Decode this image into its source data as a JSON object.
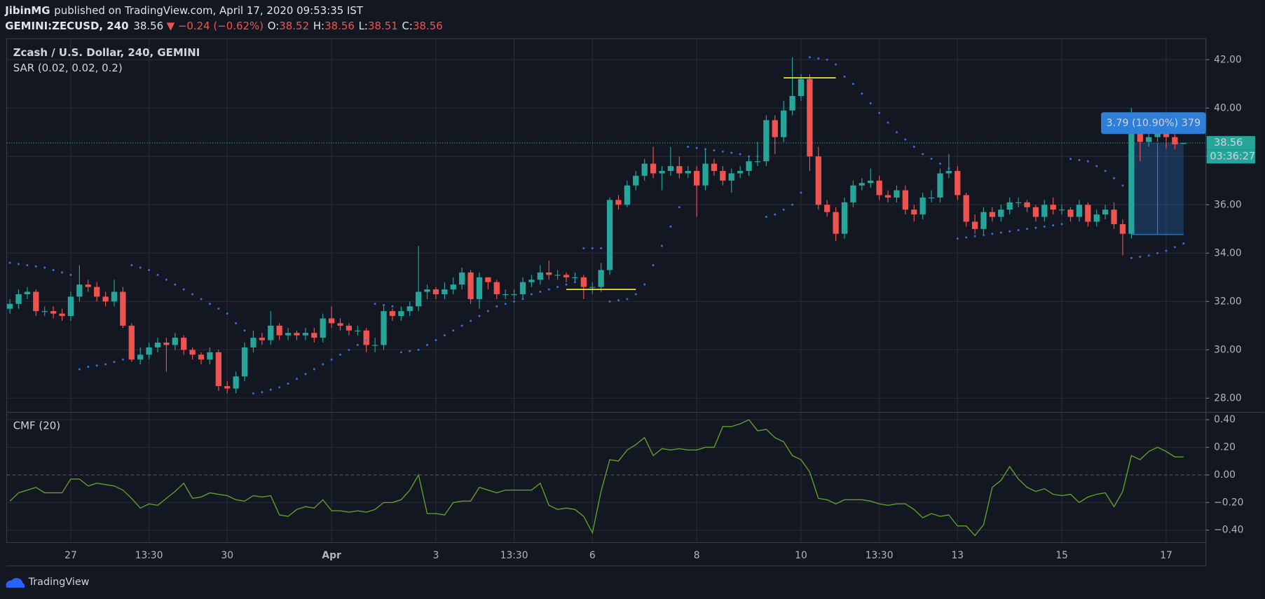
{
  "header": {
    "author": "JibinMG",
    "published": "published on TradingView.com, April 17, 2020 09:53:35 IST",
    "symbol": "GEMINI:ZECUSD, 240",
    "last": "38.56",
    "arrow": "▼",
    "change": "−0.24 (−0.62%)",
    "ohlc": [
      {
        "label": "O:",
        "value": "38.52"
      },
      {
        "label": "H:",
        "value": "38.56"
      },
      {
        "label": "L:",
        "value": "38.51"
      },
      {
        "label": "C:",
        "value": "38.56"
      }
    ]
  },
  "footer": {
    "brand": "TradingView"
  },
  "chart_data": [
    {
      "type": "candlestick",
      "title": "Zcash / U.S. Dollar, 240, GEMINI",
      "up_color": "#26a69a",
      "down_color": "#ef5350",
      "grid": true,
      "xlim": [
        -0.37,
        137.57
      ],
      "ylim": [
        27.43,
        42.87
      ],
      "xticks": [
        {
          "value": 7,
          "label": "27"
        },
        {
          "value": 16,
          "label": "13:30"
        },
        {
          "value": 25,
          "label": "30"
        },
        {
          "value": 37,
          "label": "Apr"
        },
        {
          "value": 49,
          "label": "3"
        },
        {
          "value": 58,
          "label": "13:30"
        },
        {
          "value": 67,
          "label": "6"
        },
        {
          "value": 79,
          "label": "8"
        },
        {
          "value": 91,
          "label": "10"
        },
        {
          "value": 100,
          "label": "13:30"
        },
        {
          "value": 109,
          "label": "13"
        },
        {
          "value": 121,
          "label": "15"
        },
        {
          "value": 133,
          "label": "17"
        }
      ],
      "yticks": [
        {
          "value": 42,
          "label": "42.00"
        },
        {
          "value": 40,
          "label": "40.00"
        },
        {
          "value": 38,
          "label": "38.00"
        },
        {
          "value": 36,
          "label": "36.00"
        },
        {
          "value": 34,
          "label": "34.00"
        },
        {
          "value": 32,
          "label": "32.00"
        },
        {
          "value": 30,
          "label": "30.00"
        },
        {
          "value": 28,
          "label": "28.00"
        }
      ],
      "open": [
        31.7,
        31.9,
        32.3,
        32.4,
        31.6,
        31.6,
        31.5,
        31.4,
        32.2,
        32.7,
        32.6,
        32.2,
        32.0,
        32.4,
        31.0,
        29.6,
        29.8,
        30.1,
        30.3,
        30.2,
        30.5,
        30.0,
        29.8,
        29.6,
        29.9,
        28.5,
        28.4,
        28.9,
        30.1,
        30.5,
        30.4,
        31.0,
        30.6,
        30.7,
        30.6,
        30.7,
        30.5,
        31.3,
        31.1,
        31.0,
        30.8,
        30.8,
        30.2,
        30.2,
        31.6,
        31.4,
        31.6,
        31.8,
        32.4,
        32.5,
        32.3,
        32.5,
        32.7,
        33.2,
        32.1,
        33.0,
        32.8,
        32.3,
        32.3,
        32.3,
        32.8,
        32.9,
        33.2,
        33.1,
        33.1,
        33.0,
        33.0,
        32.6,
        32.6,
        33.3,
        36.2,
        36.0,
        36.8,
        37.2,
        37.7,
        37.3,
        37.4,
        37.6,
        37.3,
        37.4,
        36.8,
        37.7,
        37.4,
        37.0,
        37.3,
        37.4,
        37.8,
        37.8,
        39.5,
        38.8,
        39.9,
        40.5,
        41.2,
        38.0,
        36.0,
        35.7,
        34.8,
        36.1,
        36.8,
        36.9,
        37.0,
        36.4,
        36.3,
        36.6,
        35.8,
        35.6,
        36.3,
        36.3,
        37.3,
        37.4,
        36.4,
        35.3,
        35.0,
        35.7,
        35.5,
        35.8,
        36.1,
        36.1,
        35.9,
        35.5,
        36.0,
        35.8,
        35.8,
        35.5,
        36.0,
        35.3,
        35.6,
        35.8,
        35.2,
        34.8,
        39.2,
        38.6,
        38.8,
        39.0,
        38.8,
        38.52
      ],
      "high": [
        32.1,
        32.5,
        32.6,
        32.5,
        31.8,
        31.8,
        31.7,
        32.4,
        33.5,
        32.9,
        32.8,
        32.4,
        32.9,
        32.6,
        31.1,
        30.1,
        30.3,
        30.5,
        30.5,
        30.7,
        30.6,
        30.1,
        29.9,
        30.1,
        30.0,
        28.7,
        29.1,
        30.3,
        30.8,
        30.7,
        31.6,
        31.1,
        30.9,
        30.8,
        30.9,
        30.9,
        31.5,
        31.8,
        31.3,
        31.1,
        31.0,
        30.9,
        30.5,
        31.8,
        31.7,
        31.8,
        32.0,
        34.3,
        32.7,
        32.6,
        32.8,
        33.0,
        33.4,
        33.3,
        33.2,
        33.0,
        32.9,
        32.5,
        32.5,
        33.0,
        33.1,
        33.5,
        33.7,
        33.3,
        33.2,
        33.2,
        33.1,
        32.8,
        33.6,
        36.3,
        36.4,
        37.0,
        37.4,
        37.9,
        38.4,
        37.6,
        38.4,
        38.0,
        37.6,
        37.6,
        38.3,
        37.9,
        37.6,
        37.5,
        37.6,
        38.0,
        38.6,
        39.7,
        39.7,
        40.3,
        42.1,
        41.4,
        41.4,
        38.4,
        36.2,
        35.9,
        36.3,
        37.0,
        37.1,
        37.5,
        37.2,
        36.6,
        36.8,
        36.8,
        36.0,
        36.5,
        36.6,
        37.5,
        38.1,
        37.6,
        36.5,
        35.6,
        35.9,
        35.9,
        36.0,
        36.3,
        36.3,
        36.2,
        36.0,
        36.2,
        36.3,
        36.0,
        35.9,
        36.2,
        36.1,
        35.8,
        36.0,
        36.1,
        35.4,
        40.0,
        39.4,
        39.2,
        39.4,
        39.2,
        39.0,
        38.56
      ],
      "low": [
        31.5,
        31.7,
        32.1,
        31.4,
        31.4,
        31.3,
        31.2,
        31.2,
        32.0,
        32.4,
        32.0,
        31.8,
        31.8,
        30.9,
        29.5,
        29.4,
        29.6,
        29.9,
        29.1,
        30.0,
        29.8,
        29.6,
        29.4,
        29.4,
        28.3,
        28.2,
        28.2,
        28.7,
        29.9,
        30.2,
        30.2,
        30.4,
        30.4,
        30.4,
        30.4,
        30.3,
        30.3,
        30.9,
        30.8,
        30.6,
        30.6,
        29.9,
        29.9,
        30.0,
        31.2,
        31.2,
        31.4,
        31.6,
        32.1,
        32.1,
        32.1,
        32.3,
        32.5,
        31.9,
        31.7,
        32.5,
        32.1,
        32.1,
        32.1,
        32.1,
        32.6,
        32.7,
        32.9,
        32.9,
        32.8,
        32.8,
        32.1,
        32.3,
        32.4,
        33.1,
        35.8,
        35.9,
        36.6,
        37.0,
        37.1,
        36.6,
        37.2,
        37.1,
        37.1,
        35.5,
        36.6,
        37.2,
        36.8,
        36.5,
        37.1,
        37.2,
        37.6,
        37.6,
        38.1,
        38.6,
        39.7,
        40.3,
        37.4,
        35.8,
        35.5,
        34.5,
        34.6,
        35.9,
        36.6,
        36.7,
        36.2,
        36.1,
        36.1,
        35.6,
        35.3,
        35.4,
        36.1,
        36.1,
        37.1,
        36.2,
        35.1,
        34.8,
        34.8,
        35.3,
        35.3,
        35.6,
        35.9,
        35.7,
        35.3,
        35.3,
        35.6,
        35.6,
        35.3,
        35.3,
        35.1,
        35.1,
        35.4,
        35.0,
        33.9,
        34.6,
        37.8,
        38.4,
        38.6,
        38.3,
        38.3,
        38.51
      ],
      "close": [
        31.9,
        32.3,
        32.4,
        31.6,
        31.6,
        31.5,
        31.4,
        32.2,
        32.7,
        32.6,
        32.2,
        32.0,
        32.4,
        31.0,
        29.6,
        29.8,
        30.1,
        30.3,
        30.2,
        30.5,
        30.0,
        29.8,
        29.6,
        29.9,
        28.5,
        28.4,
        28.9,
        30.1,
        30.5,
        30.4,
        31.0,
        30.6,
        30.7,
        30.6,
        30.7,
        30.5,
        31.3,
        31.1,
        31.0,
        30.8,
        30.8,
        30.2,
        30.2,
        31.6,
        31.4,
        31.6,
        31.8,
        32.4,
        32.5,
        32.3,
        32.5,
        32.7,
        33.2,
        32.1,
        33.0,
        32.8,
        32.3,
        32.3,
        32.3,
        32.8,
        32.9,
        33.2,
        33.1,
        33.1,
        33.0,
        33.0,
        32.6,
        32.6,
        33.3,
        36.2,
        36.0,
        36.8,
        37.2,
        37.7,
        37.3,
        37.4,
        37.6,
        37.3,
        37.4,
        36.8,
        37.7,
        37.4,
        37.0,
        37.3,
        37.4,
        37.8,
        37.8,
        39.5,
        38.8,
        39.9,
        40.5,
        41.2,
        38.0,
        36.0,
        35.7,
        34.8,
        36.1,
        36.8,
        36.9,
        37.0,
        36.4,
        36.3,
        36.6,
        35.8,
        35.6,
        36.3,
        36.3,
        37.3,
        37.4,
        36.4,
        35.3,
        35.0,
        35.7,
        35.5,
        35.8,
        36.1,
        36.1,
        35.9,
        35.5,
        36.0,
        35.8,
        35.8,
        35.5,
        36.0,
        35.3,
        35.6,
        35.8,
        35.2,
        34.8,
        39.2,
        38.6,
        38.8,
        39.0,
        38.8,
        38.5,
        38.56
      ],
      "sar": {
        "name": "SAR (0.02, 0.02, 0.2)",
        "color": "#3a6fd8",
        "values": [
          33.6,
          33.55,
          33.5,
          33.45,
          33.4,
          33.3,
          33.2,
          33.1,
          29.2,
          29.3,
          29.35,
          29.4,
          29.5,
          29.6,
          33.5,
          33.4,
          33.3,
          33.1,
          32.9,
          32.7,
          32.5,
          32.3,
          32.1,
          31.9,
          31.7,
          31.5,
          31.1,
          30.8,
          28.2,
          28.25,
          28.35,
          28.45,
          28.6,
          28.8,
          29.0,
          29.2,
          29.4,
          29.6,
          29.8,
          30.0,
          30.2,
          30.4,
          31.9,
          31.85,
          31.8,
          29.9,
          29.95,
          30.0,
          30.2,
          30.4,
          30.6,
          30.8,
          31.0,
          31.2,
          31.4,
          31.6,
          31.8,
          31.9,
          32.0,
          32.1,
          32.3,
          32.4,
          32.5,
          32.6,
          32.7,
          32.8,
          34.2,
          34.2,
          34.2,
          32.0,
          32.05,
          32.1,
          32.3,
          32.7,
          33.5,
          34.3,
          35.1,
          35.9,
          38.4,
          38.35,
          38.3,
          38.25,
          38.2,
          38.15,
          38.1,
          38.0,
          38.0,
          35.5,
          35.6,
          35.8,
          36.0,
          36.5,
          42.1,
          42.05,
          42.0,
          41.8,
          41.3,
          41.0,
          40.6,
          40.2,
          39.8,
          39.4,
          39.0,
          38.7,
          38.4,
          38.1,
          37.9,
          37.7,
          37.5,
          34.6,
          34.65,
          34.7,
          34.75,
          34.8,
          34.85,
          34.9,
          34.95,
          35.0,
          35.05,
          35.1,
          35.15,
          35.2,
          37.9,
          37.85,
          37.8,
          37.6,
          37.4,
          37.1,
          36.8,
          33.8,
          33.85,
          33.9,
          34.0,
          34.1,
          34.25,
          34.4
        ]
      },
      "last_price": 38.56,
      "last_price_color": "#26a69a",
      "countdown": "03:36:27",
      "levels": [
        {
          "value": 41.25,
          "start": 89,
          "end": 95,
          "color": "#f5e51b"
        },
        {
          "value": 32.5,
          "start": 64,
          "end": 72,
          "color": "#f5e51b"
        }
      ],
      "measure": {
        "label": "3.79 (10.90%) 379",
        "from": 34.77,
        "to": 38.56,
        "start": 129,
        "end": 135,
        "color": "#2f7ed8"
      }
    },
    {
      "type": "line",
      "title": "CMF (20)",
      "ylim": [
        -0.49,
        0.45
      ],
      "yticks": [
        {
          "value": 0.4,
          "label": "0.40"
        },
        {
          "value": 0.2,
          "label": "0.20"
        },
        {
          "value": 0,
          "label": "0.00"
        },
        {
          "value": -0.2,
          "label": "−0.20"
        },
        {
          "value": -0.4,
          "label": "−0.40"
        }
      ],
      "series": [
        {
          "name": "CMF (20)",
          "color": "#5f9f2a",
          "values": [
            -0.19,
            -0.13,
            -0.11,
            -0.09,
            -0.13,
            -0.13,
            -0.13,
            -0.03,
            -0.03,
            -0.08,
            -0.06,
            -0.07,
            -0.08,
            -0.11,
            -0.17,
            -0.24,
            -0.21,
            -0.22,
            -0.17,
            -0.12,
            -0.06,
            -0.17,
            -0.16,
            -0.13,
            -0.14,
            -0.15,
            -0.18,
            -0.19,
            -0.15,
            -0.16,
            -0.15,
            -0.29,
            -0.3,
            -0.25,
            -0.23,
            -0.24,
            -0.18,
            -0.26,
            -0.26,
            -0.27,
            -0.26,
            -0.27,
            -0.25,
            -0.2,
            -0.2,
            -0.18,
            -0.11,
            0.0,
            -0.28,
            -0.28,
            -0.29,
            -0.2,
            -0.19,
            -0.19,
            -0.09,
            -0.11,
            -0.13,
            -0.11,
            -0.11,
            -0.11,
            -0.11,
            -0.06,
            -0.22,
            -0.25,
            -0.24,
            -0.25,
            -0.3,
            -0.42,
            -0.12,
            0.11,
            0.1,
            0.18,
            0.22,
            0.27,
            0.14,
            0.19,
            0.18,
            0.19,
            0.18,
            0.18,
            0.2,
            0.2,
            0.35,
            0.35,
            0.37,
            0.4,
            0.32,
            0.33,
            0.27,
            0.24,
            0.14,
            0.11,
            0.02,
            -0.17,
            -0.18,
            -0.21,
            -0.18,
            -0.18,
            -0.18,
            -0.19,
            -0.21,
            -0.22,
            -0.21,
            -0.21,
            -0.25,
            -0.31,
            -0.28,
            -0.3,
            -0.29,
            -0.37,
            -0.37,
            -0.44,
            -0.36,
            -0.09,
            -0.04,
            0.06,
            -0.03,
            -0.09,
            -0.12,
            -0.1,
            -0.14,
            -0.15,
            -0.14,
            -0.2,
            -0.16,
            -0.14,
            -0.13,
            -0.23,
            -0.12,
            0.14,
            0.11,
            0.17,
            0.2,
            0.17,
            0.13,
            0.13
          ]
        }
      ]
    }
  ]
}
